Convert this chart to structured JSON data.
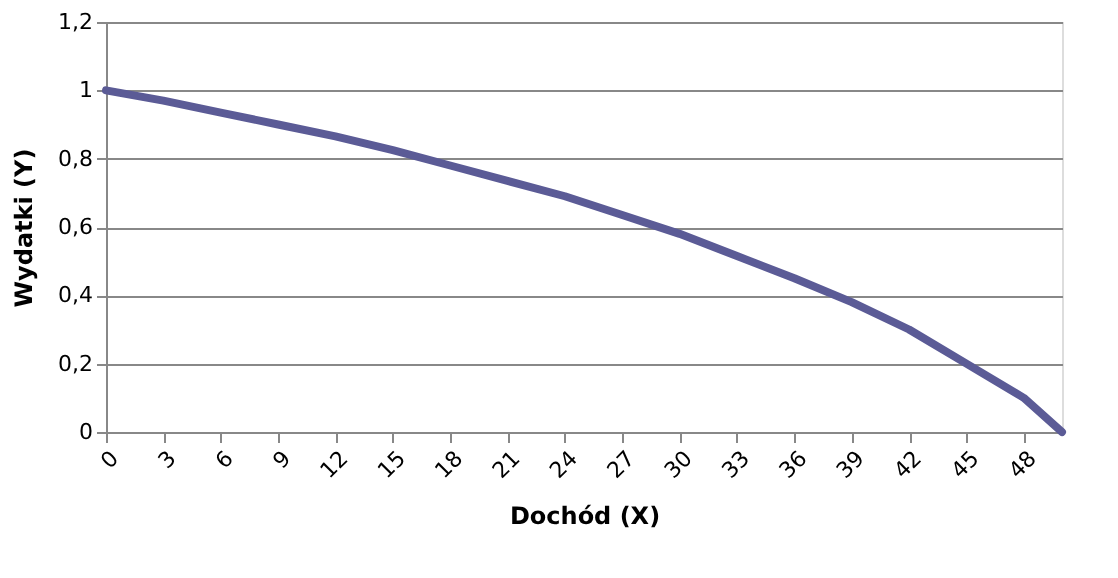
{
  "chart_data": {
    "type": "line",
    "xlabel": "Dochód (X)",
    "ylabel": "Wydatki (Y)",
    "x": [
      0,
      3,
      6,
      9,
      12,
      15,
      18,
      21,
      24,
      27,
      30,
      33,
      36,
      39,
      42,
      45,
      48,
      50
    ],
    "series": [
      {
        "color": "#5b5b96",
        "values": [
          1.0,
          0.97,
          0.935,
          0.9,
          0.865,
          0.825,
          0.78,
          0.735,
          0.69,
          0.635,
          0.58,
          0.515,
          0.45,
          0.38,
          0.3,
          0.2,
          0.1,
          0.0
        ]
      }
    ],
    "xlim": [
      0,
      50
    ],
    "xticks": [
      0,
      3,
      6,
      9,
      12,
      15,
      18,
      21,
      24,
      27,
      30,
      33,
      36,
      39,
      42,
      45,
      48
    ],
    "ylim": [
      0,
      1.2
    ],
    "yticks": [
      {
        "value": 0,
        "label": "0"
      },
      {
        "value": 0.2,
        "label": "0,2"
      },
      {
        "value": 0.4,
        "label": "0,4"
      },
      {
        "value": 0.6,
        "label": "0,6"
      },
      {
        "value": 0.8,
        "label": "0,8"
      },
      {
        "value": 1,
        "label": "1"
      },
      {
        "value": 1.2,
        "label": "1,2"
      }
    ],
    "grid": "y",
    "marker": "none",
    "line_style": "solid"
  }
}
